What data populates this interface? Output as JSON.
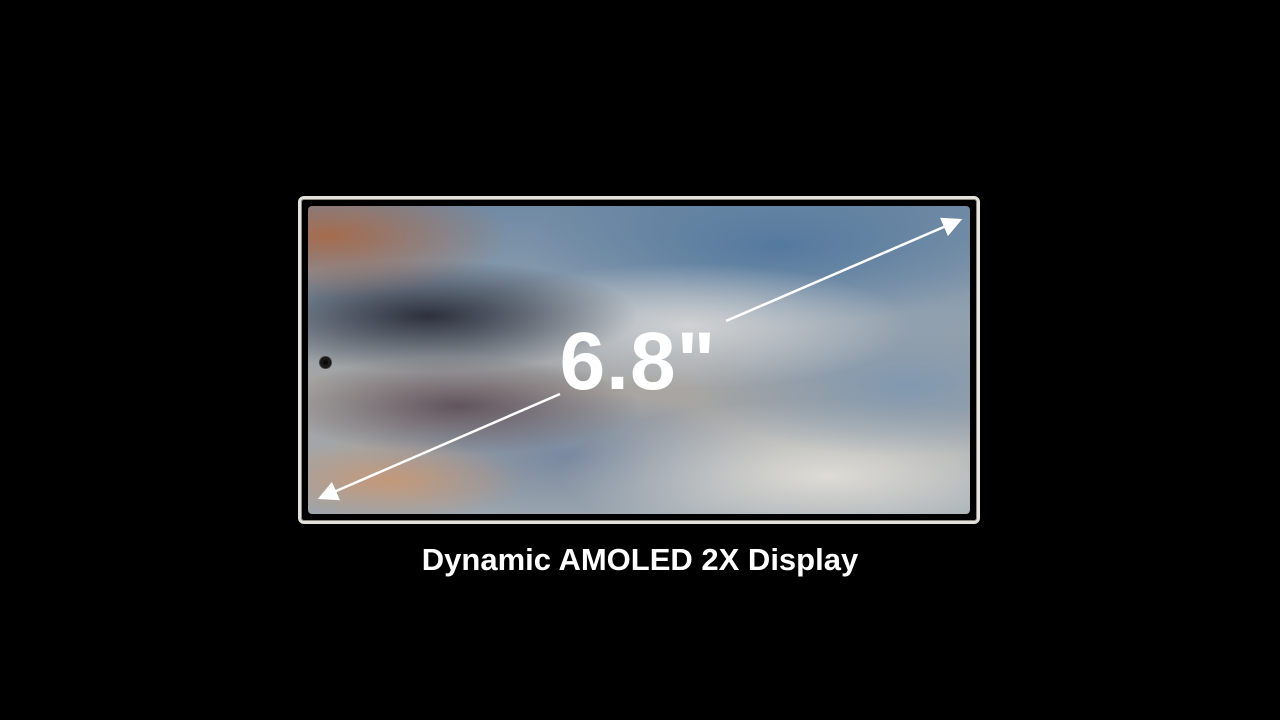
{
  "display": {
    "size_label": "6.8\"",
    "caption": "Dynamic AMOLED 2X Display"
  },
  "icons": {
    "camera": "camera-hole-icon",
    "diagonal_arrow": "double-arrow-icon"
  },
  "colors": {
    "background": "#000000",
    "frame": "#e4e2dc",
    "text": "#ffffff"
  }
}
